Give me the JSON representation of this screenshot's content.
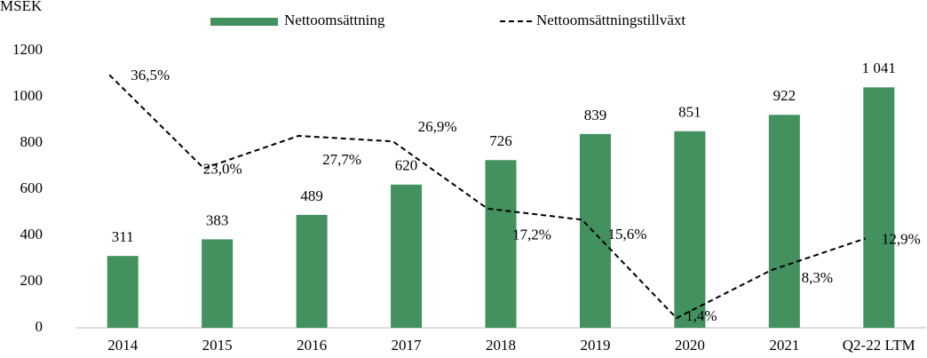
{
  "chart_data": {
    "type": "bar_line",
    "y_axis_label": "MSEK",
    "categories": [
      "2014",
      "2015",
      "2016",
      "2017",
      "2018",
      "2019",
      "2020",
      "2021",
      "Q2-22 LTM"
    ],
    "series": [
      {
        "name": "Nettoomsättning",
        "type": "bar",
        "color": "#43915f",
        "values": [
          311,
          383,
          489,
          620,
          726,
          839,
          851,
          922,
          1041
        ],
        "value_labels": [
          "311",
          "383",
          "489",
          "620",
          "726",
          "839",
          "851",
          "922",
          "1 041"
        ]
      },
      {
        "name": "Nettoomsättningstillväxt",
        "type": "line",
        "axis": "y2",
        "color": "#000000",
        "dashed": true,
        "values": [
          36.5,
          23.0,
          27.7,
          26.9,
          17.2,
          15.6,
          1.4,
          8.3,
          12.9
        ],
        "value_labels": [
          "36,5%",
          "23,0%",
          "27,7%",
          "26,9%",
          "17,2%",
          "15,6%",
          "1,4%",
          "8,3%",
          "12,9%"
        ]
      }
    ],
    "ylim": [
      0,
      1200
    ],
    "yticks": [
      0,
      200,
      400,
      600,
      800,
      1000,
      1200
    ],
    "y2lim": [
      0,
      40
    ],
    "grid": false,
    "legend": "top"
  }
}
